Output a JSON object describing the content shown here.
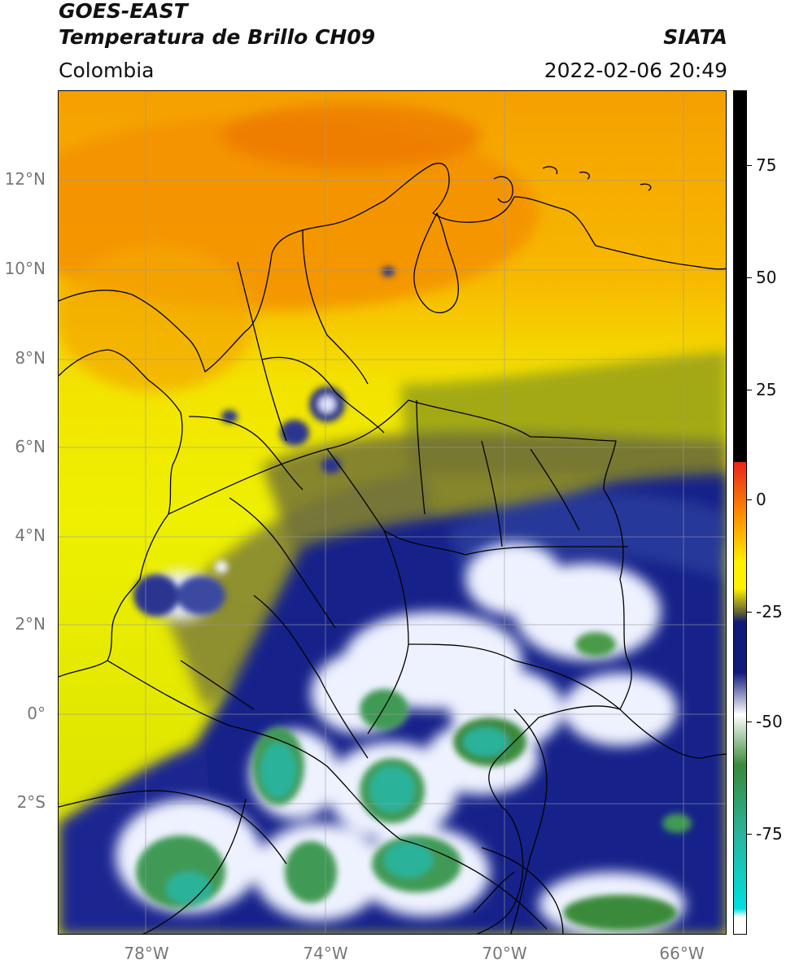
{
  "header": {
    "title_line1": "GOES-EAST",
    "title_line2": "Temperatura de Brillo CH09",
    "agency": "SIATA",
    "region": "Colombia",
    "datetime": "2022-02-06 20:49"
  },
  "map": {
    "lon_labels": [
      "78°W",
      "74°W",
      "70°W",
      "66°W"
    ],
    "lat_labels": [
      "12°N",
      "10°N",
      "8°N",
      "6°N",
      "4°N",
      "2°N",
      "0°",
      "2°S"
    ]
  },
  "colorbar": {
    "labels": [
      "75",
      "50",
      "25",
      "0",
      "-25",
      "-50",
      "-75"
    ],
    "range": [
      -95,
      90
    ],
    "colors": {
      "black": "#000000",
      "red": "#e8251a",
      "orange": "#ff9a00",
      "yellow": "#fff200",
      "olive": "#5a5a3a",
      "navy": "#0f1a7a",
      "white": "#ffffff",
      "green": "#3a8a3a",
      "teal": "#2ab39a",
      "cyan": "#00e0e0"
    }
  }
}
